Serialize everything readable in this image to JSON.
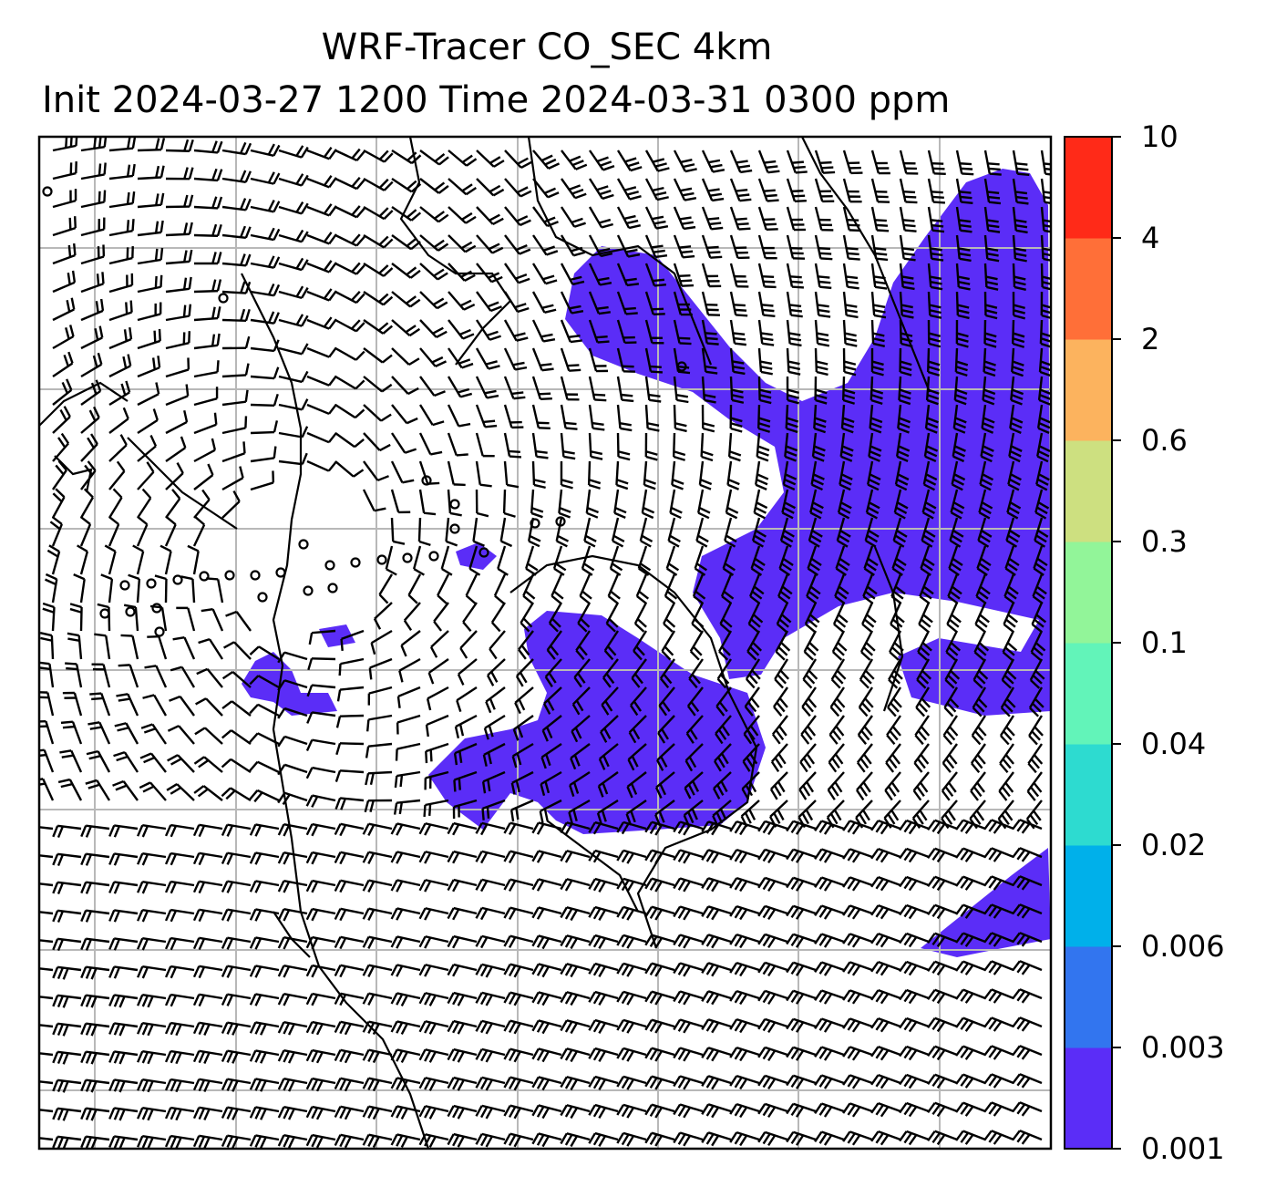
{
  "title": {
    "line1": "WRF-Tracer CO_SEC 4km",
    "line2": "Init 2024-03-27 1200 Time 2024-03-31 0300 ppm"
  },
  "colorbar": {
    "levels": [
      "0.001",
      "0.003",
      "0.006",
      "0.02",
      "0.04",
      "0.1",
      "0.3",
      "0.6",
      "2",
      "4",
      "10"
    ],
    "colors": [
      "#5b2df7",
      "#3275ef",
      "#00b0ea",
      "#2ddbd0",
      "#62f4b9",
      "#92f599",
      "#cde080",
      "#fcb35e",
      "#ff6f38",
      "#ff2a18"
    ]
  },
  "map": {
    "variable": "CO_SEC tracer",
    "units": "ppm",
    "filled_color": "#5b2df7",
    "overlay": "wind-barbs",
    "gridlines": true
  }
}
